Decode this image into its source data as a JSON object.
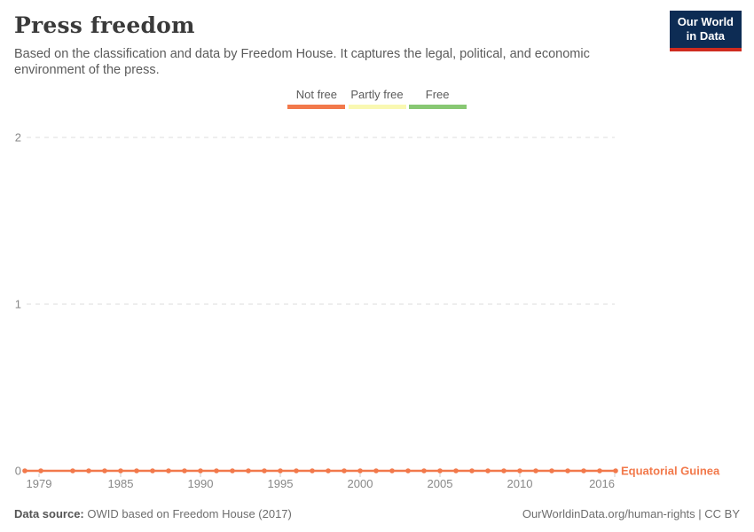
{
  "header": {
    "title": "Press freedom",
    "subtitle": "Based on the classification and data by Freedom House. It captures the legal, political, and economic environment of the press."
  },
  "logo": {
    "line1": "Our World",
    "line2": "in Data",
    "bg_color": "#0d2c54",
    "accent_color": "#cf2b1f"
  },
  "legend": {
    "items": [
      {
        "label": "Not free",
        "color": "#f2794b"
      },
      {
        "label": "Partly free",
        "color": "#f9f8b2"
      },
      {
        "label": "Free",
        "color": "#88c873"
      }
    ]
  },
  "chart_data": {
    "type": "line",
    "title": "Press freedom",
    "entity_label": "Equatorial Guinea",
    "series": [
      {
        "name": "Equatorial Guinea",
        "color": "#f2794b",
        "x": [
          1979,
          1980,
          1982,
          1983,
          1984,
          1985,
          1986,
          1987,
          1988,
          1989,
          1990,
          1991,
          1992,
          1993,
          1994,
          1995,
          1996,
          1997,
          1998,
          1999,
          2000,
          2001,
          2002,
          2003,
          2004,
          2005,
          2006,
          2007,
          2008,
          2009,
          2010,
          2011,
          2012,
          2013,
          2014,
          2015,
          2016
        ],
        "values": [
          0,
          0,
          0,
          0,
          0,
          0,
          0,
          0,
          0,
          0,
          0,
          0,
          0,
          0,
          0,
          0,
          0,
          0,
          0,
          0,
          0,
          0,
          0,
          0,
          0,
          0,
          0,
          0,
          0,
          0,
          0,
          0,
          0,
          0,
          0,
          0,
          0
        ]
      }
    ],
    "x_ticks": [
      1979,
      1985,
      1990,
      1995,
      2000,
      2005,
      2010,
      2016
    ],
    "y_ticks": [
      0,
      1,
      2
    ],
    "xlim": [
      1979,
      2016
    ],
    "ylim": [
      0,
      2
    ],
    "value_labels": {
      "0": "Not free",
      "1": "Partly free",
      "2": "Free"
    },
    "grid": true,
    "legend_position": "top",
    "grid_color": "#dcdcdc",
    "tick_color": "#888888"
  },
  "footer": {
    "source_label": "Data source:",
    "source_text": " OWID based on Freedom House (2017)",
    "link_text": "OurWorldinData.org/human-rights | CC BY"
  }
}
